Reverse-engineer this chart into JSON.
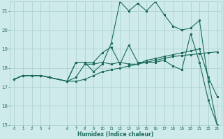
{
  "xlabel": "Humidex (Indice chaleur)",
  "bg_color": "#ceeaea",
  "grid_color": "#aacccc",
  "line_color": "#1a6b5a",
  "xlim": [
    -0.5,
    23.5
  ],
  "ylim": [
    15,
    21.5
  ],
  "yticks": [
    15,
    16,
    17,
    18,
    19,
    20,
    21
  ],
  "xticks": [
    0,
    1,
    2,
    3,
    4,
    6,
    7,
    8,
    9,
    10,
    11,
    12,
    13,
    14,
    15,
    16,
    17,
    18,
    19,
    20,
    21,
    22,
    23
  ],
  "series1_x": [
    0,
    1,
    2,
    3,
    4,
    6,
    7,
    8,
    9,
    10,
    11,
    12,
    13,
    14,
    15,
    16,
    17,
    18,
    19,
    20,
    21,
    22,
    23
  ],
  "series1_y": [
    17.4,
    17.6,
    17.6,
    17.6,
    17.5,
    17.3,
    17.5,
    18.2,
    18.2,
    18.3,
    18.2,
    18.3,
    18.2,
    18.2,
    18.3,
    18.4,
    18.5,
    18.6,
    18.65,
    18.7,
    18.75,
    18.8,
    18.85
  ],
  "series2_x": [
    0,
    1,
    2,
    3,
    4,
    6,
    7,
    8,
    9,
    10,
    11,
    12,
    13,
    14,
    15,
    16,
    17,
    18,
    19,
    20,
    21,
    22,
    23
  ],
  "series2_y": [
    17.4,
    17.6,
    17.6,
    17.6,
    17.5,
    17.3,
    17.3,
    17.4,
    17.6,
    17.8,
    17.9,
    18.0,
    18.1,
    18.2,
    18.4,
    18.5,
    18.6,
    18.7,
    18.8,
    18.9,
    19.0,
    17.5,
    16.5
  ],
  "series3_x": [
    0,
    1,
    2,
    3,
    4,
    6,
    7,
    8,
    9,
    10,
    11,
    12,
    13,
    14,
    15,
    16,
    17,
    18,
    19,
    20,
    21,
    22,
    23
  ],
  "series3_y": [
    17.4,
    17.6,
    17.6,
    17.6,
    17.5,
    17.3,
    18.3,
    18.3,
    18.3,
    18.8,
    19.1,
    18.2,
    19.2,
    18.3,
    18.3,
    18.3,
    18.4,
    18.1,
    17.9,
    19.8,
    18.3,
    16.3,
    15.0
  ],
  "series4_x": [
    0,
    1,
    2,
    3,
    4,
    6,
    7,
    8,
    9,
    10,
    11,
    12,
    13,
    14,
    15,
    16,
    17,
    18,
    19,
    20,
    21,
    22,
    23
  ],
  "series4_y": [
    17.4,
    17.6,
    17.6,
    17.6,
    17.5,
    17.3,
    18.3,
    18.3,
    17.8,
    18.2,
    19.3,
    21.5,
    21.0,
    21.4,
    21.0,
    21.5,
    20.8,
    20.2,
    20.0,
    20.1,
    20.5,
    17.3,
    15.0
  ]
}
